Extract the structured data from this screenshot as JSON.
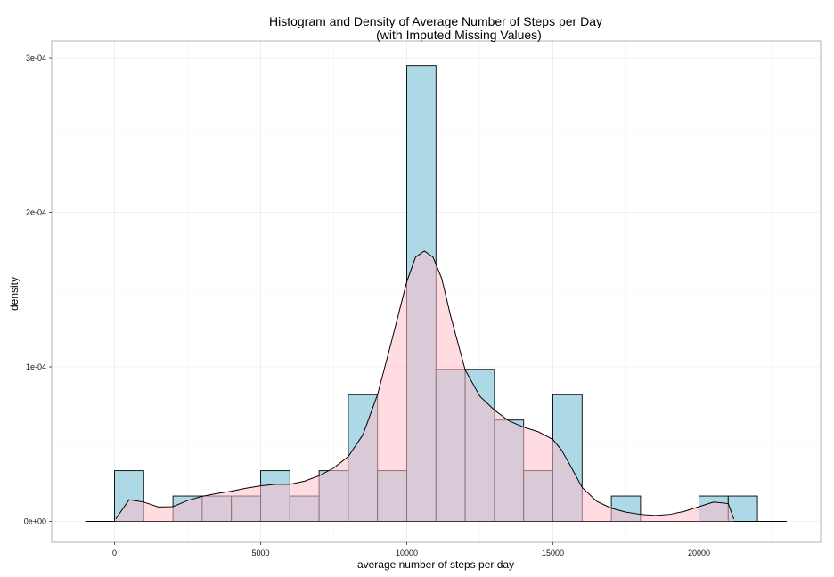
{
  "chart_data": {
    "type": "bar",
    "title": "Histogram and Density of Average Number of Steps per Day",
    "subtitle": "(with Imputed Missing Values)",
    "xlabel": "average number of steps per day",
    "ylabel": "density",
    "xlim": [
      -1000,
      23000
    ],
    "ylim": [
      0,
      0.0003
    ],
    "x_ticks": [
      0,
      5000,
      10000,
      15000,
      20000
    ],
    "x_tick_labels": [
      "0",
      "5000",
      "10000",
      "15000",
      "20000"
    ],
    "y_ticks": [
      0,
      0.0001,
      0.0002,
      0.0003
    ],
    "y_tick_labels": [
      "0e+00",
      "1e-04",
      "2e-04",
      "3e-04"
    ],
    "grid": true,
    "histogram": {
      "bin_width": 1000,
      "bins": [
        {
          "start": 0,
          "density": 3.28e-05
        },
        {
          "start": 1000,
          "density": 0
        },
        {
          "start": 2000,
          "density": 1.64e-05
        },
        {
          "start": 3000,
          "density": 1.64e-05
        },
        {
          "start": 4000,
          "density": 1.64e-05
        },
        {
          "start": 5000,
          "density": 3.28e-05
        },
        {
          "start": 6000,
          "density": 1.64e-05
        },
        {
          "start": 7000,
          "density": 3.28e-05
        },
        {
          "start": 8000,
          "density": 8.2e-05
        },
        {
          "start": 9000,
          "density": 3.28e-05
        },
        {
          "start": 10000,
          "density": 0.000295
        },
        {
          "start": 11000,
          "density": 9.84e-05
        },
        {
          "start": 12000,
          "density": 9.84e-05
        },
        {
          "start": 13000,
          "density": 6.56e-05
        },
        {
          "start": 14000,
          "density": 3.28e-05
        },
        {
          "start": 15000,
          "density": 8.2e-05
        },
        {
          "start": 16000,
          "density": 0
        },
        {
          "start": 17000,
          "density": 1.64e-05
        },
        {
          "start": 18000,
          "density": 0
        },
        {
          "start": 19000,
          "density": 0
        },
        {
          "start": 20000,
          "density": 1.64e-05
        },
        {
          "start": 21000,
          "density": 1.64e-05
        }
      ]
    },
    "density_curve": {
      "x": [
        41,
        500,
        1000,
        1500,
        2000,
        2500,
        3000,
        3500,
        4000,
        4500,
        5000,
        5500,
        6000,
        6500,
        7000,
        7500,
        8000,
        8500,
        9000,
        9500,
        10000,
        10300,
        10600,
        10900,
        11200,
        11500,
        12000,
        12500,
        13000,
        13500,
        14000,
        14500,
        15000,
        15300,
        15600,
        16000,
        16500,
        17000,
        17500,
        18000,
        18500,
        19000,
        19500,
        20000,
        20500,
        21000,
        21194
      ],
      "y": [
        1.5e-06,
        1.4e-05,
        1.25e-05,
        9.3e-06,
        9.5e-06,
        1.35e-05,
        1.62e-05,
        1.8e-05,
        1.95e-05,
        2.15e-05,
        2.3e-05,
        2.4e-05,
        2.4e-05,
        2.6e-05,
        2.95e-05,
        3.45e-05,
        4.2e-05,
        5.6e-05,
        8.2e-05,
        0.000118,
        0.000155,
        0.000171,
        0.000175,
        0.000171,
        0.000157,
        0.000133,
        9.8e-05,
        8.1e-05,
        7.2e-05,
        6.5e-05,
        6.1e-05,
        5.8e-05,
        5.3e-05,
        4.6e-05,
        3.6e-05,
        2.2e-05,
        1.3e-05,
        8.5e-06,
        6e-06,
        4.5e-06,
        3.8e-06,
        4.5e-06,
        6.5e-06,
        9.5e-06,
        1.25e-05,
        1.15e-05,
        1.5e-06
      ]
    },
    "colors": {
      "histogram_fill": "#add8e6",
      "density_fill": "#ffc0cb",
      "outline": "#000000",
      "grid": "#ebebeb",
      "panel_border": "#b3b3b3"
    }
  }
}
